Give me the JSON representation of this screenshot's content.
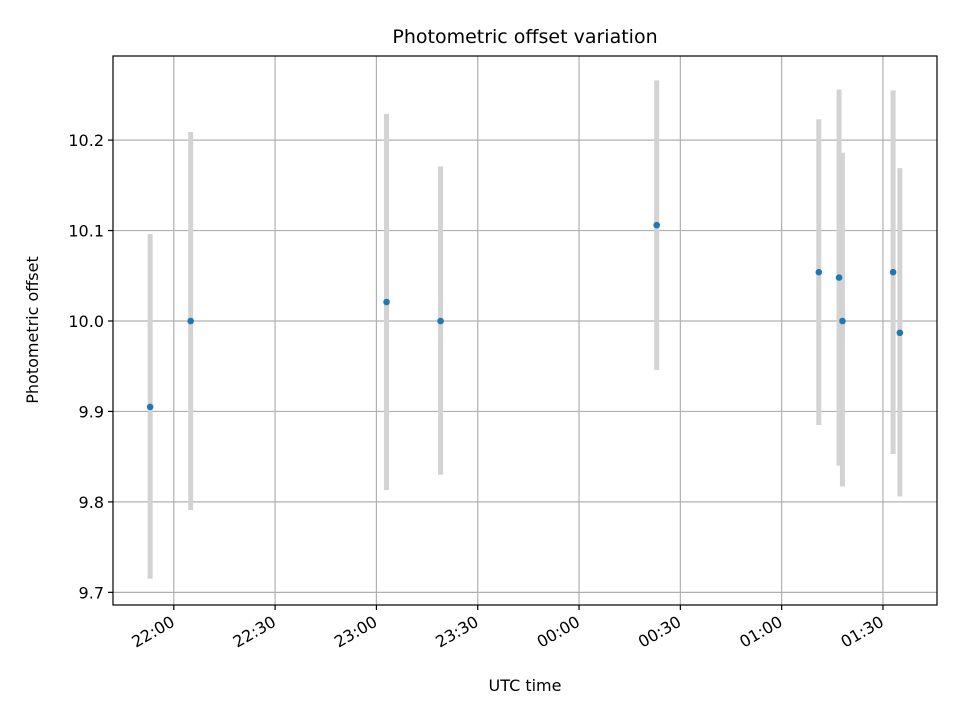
{
  "chart_data": {
    "type": "scatter",
    "title": "Photometric offset variation",
    "xlabel": "UTC time",
    "ylabel": "Photometric offset",
    "x_axis": "time",
    "xlim": [
      "21:42",
      "01:46"
    ],
    "ylim": [
      9.686,
      10.293
    ],
    "x_ticks": [
      {
        "time": "22:00",
        "label": "22:00"
      },
      {
        "time": "22:30",
        "label": "22:30"
      },
      {
        "time": "23:00",
        "label": "23:00"
      },
      {
        "time": "23:30",
        "label": "23:30"
      },
      {
        "time": "00:00",
        "label": "00:00"
      },
      {
        "time": "00:30",
        "label": "00:30"
      },
      {
        "time": "01:00",
        "label": "01:00"
      },
      {
        "time": "01:30",
        "label": "01:30"
      }
    ],
    "y_ticks": [
      {
        "value": 9.7,
        "label": "9.7"
      },
      {
        "value": 9.8,
        "label": "9.8"
      },
      {
        "value": 9.9,
        "label": "9.9"
      },
      {
        "value": 10.0,
        "label": "10.0"
      },
      {
        "value": 10.1,
        "label": "10.1"
      },
      {
        "value": 10.2,
        "label": "10.2"
      }
    ],
    "grid": true,
    "colors": {
      "marker": "#1f77b4",
      "errorbar": "#d3d3d3",
      "grid": "#b0b0b0"
    },
    "points": [
      {
        "x": "21:53",
        "y": 9.905,
        "ylow": 9.715,
        "yhigh": 10.096
      },
      {
        "x": "22:05",
        "y": 10.0,
        "ylow": 9.791,
        "yhigh": 10.209
      },
      {
        "x": "23:03",
        "y": 10.021,
        "ylow": 9.813,
        "yhigh": 10.229
      },
      {
        "x": "23:19",
        "y": 10.0,
        "ylow": 9.83,
        "yhigh": 10.171
      },
      {
        "x": "00:23",
        "y": 10.106,
        "ylow": 9.946,
        "yhigh": 10.266
      },
      {
        "x": "01:11",
        "y": 10.054,
        "ylow": 9.885,
        "yhigh": 10.223
      },
      {
        "x": "01:17",
        "y": 10.048,
        "ylow": 9.84,
        "yhigh": 10.256
      },
      {
        "x": "01:18",
        "y": 10.0,
        "ylow": 9.817,
        "yhigh": 10.186
      },
      {
        "x": "01:33",
        "y": 10.054,
        "ylow": 9.853,
        "yhigh": 10.255
      },
      {
        "x": "01:35",
        "y": 9.987,
        "ylow": 9.806,
        "yhigh": 10.169
      }
    ]
  }
}
